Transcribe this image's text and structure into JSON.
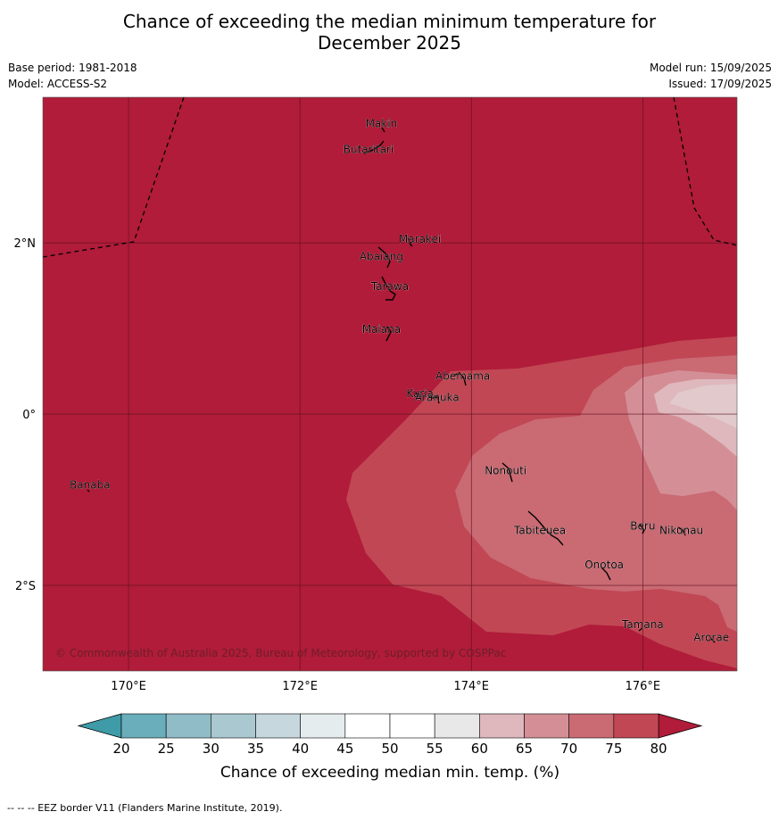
{
  "header": {
    "title_line1": "Chance of exceeding the median minimum temperature for",
    "title_line2": "December 2025",
    "base_period": "Base period: 1981-2018",
    "model": "Model: ACCESS-S2",
    "model_run": "Model run: 15/09/2025",
    "issued": "Issued: 17/09/2025"
  },
  "map": {
    "extent": {
      "lon": [
        169.0,
        177.1
      ],
      "lat": [
        -3.0,
        3.7
      ]
    },
    "lat_ticks": [
      {
        "value": 2,
        "label": "2°N"
      },
      {
        "value": 0,
        "label": "0°"
      },
      {
        "value": -2,
        "label": "2°S"
      }
    ],
    "lon_ticks": [
      {
        "value": 170,
        "label": "170°E"
      },
      {
        "value": 172,
        "label": "172°E"
      },
      {
        "value": 174,
        "label": "174°E"
      },
      {
        "value": 176,
        "label": "176°E"
      }
    ],
    "copyright": "© Commonwealth of Australia 2025, Bureau of Meteorology, supported by COSPPac",
    "colors": {
      "c75_80": "#b01c39",
      "c70_75": "#c14754",
      "c65_70": "#ca6a73",
      "c60_65": "#d48f96",
      "c55_60": "#deb8bd",
      "c50_55": "#e8e8e8"
    },
    "places": [
      {
        "name": "Makin",
        "lon": 172.95,
        "lat": 3.35
      },
      {
        "name": "Butaritari",
        "lon": 172.8,
        "lat": 3.05
      },
      {
        "name": "Marakei",
        "lon": 173.4,
        "lat": 2.0
      },
      {
        "name": "Abaiang",
        "lon": 172.95,
        "lat": 1.8
      },
      {
        "name": "Tarawa",
        "lon": 173.05,
        "lat": 1.45
      },
      {
        "name": "Maiana",
        "lon": 172.95,
        "lat": 0.95
      },
      {
        "name": "Abemama",
        "lon": 173.9,
        "lat": 0.4
      },
      {
        "name": "Kuria",
        "lon": 173.4,
        "lat": 0.2
      },
      {
        "name": "Aranuka",
        "lon": 173.6,
        "lat": 0.15
      },
      {
        "name": "Banaba",
        "lon": 169.55,
        "lat": -0.87
      },
      {
        "name": "Nonouti",
        "lon": 174.4,
        "lat": -0.7
      },
      {
        "name": "Tabiteuea",
        "lon": 174.8,
        "lat": -1.4
      },
      {
        "name": "Beru",
        "lon": 176.0,
        "lat": -1.35
      },
      {
        "name": "Nikunau",
        "lon": 176.45,
        "lat": -1.4
      },
      {
        "name": "Onotoa",
        "lon": 175.55,
        "lat": -1.8
      },
      {
        "name": "Tamana",
        "lon": 176.0,
        "lat": -2.5
      },
      {
        "name": "Arorae",
        "lon": 176.8,
        "lat": -2.65
      }
    ]
  },
  "colorbar": {
    "ticks": [
      "20",
      "25",
      "30",
      "35",
      "40",
      "45",
      "50",
      "55",
      "60",
      "65",
      "70",
      "75",
      "80"
    ],
    "colors": [
      "#6aadbb",
      "#8fbcc7",
      "#aac8cf",
      "#c6d8dd",
      "#e4ecee",
      "#ffffff",
      "#ffffff",
      "#e8e8e8",
      "#deb8bd",
      "#d48f96",
      "#ca6a73",
      "#c14754"
    ],
    "low_color": "#3e9ba7",
    "high_color": "#b01c39",
    "label": "Chance of exceeding median min. temp. (%)"
  },
  "footer": {
    "eez_note": "--  --  -- EEZ border V11 (Flanders Marine Institute, 2019)."
  }
}
